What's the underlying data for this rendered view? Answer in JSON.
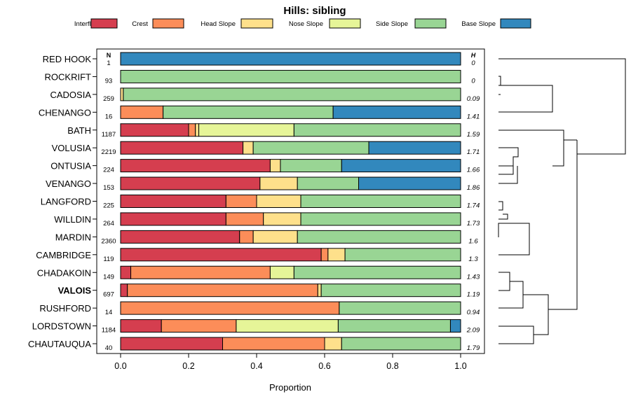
{
  "chart_data": {
    "type": "bar",
    "stacked": true,
    "orientation": "horizontal",
    "title": "Hills: sibling",
    "xlabel": "Proportion",
    "ylabel": "",
    "xlim": [
      0,
      1
    ],
    "xticks": [
      "0.0",
      "0.2",
      "0.4",
      "0.6",
      "0.8",
      "1.0"
    ],
    "n_header": "N",
    "h_header": "H",
    "legend_position": "top",
    "highlight": "VALOIS",
    "legend": [
      {
        "name": "Interfluve",
        "color": "#D53E4F"
      },
      {
        "name": "Crest",
        "color": "#FC8D59"
      },
      {
        "name": "Head Slope",
        "color": "#FEE08B"
      },
      {
        "name": "Nose Slope",
        "color": "#E6F598"
      },
      {
        "name": "Side Slope",
        "color": "#99D594"
      },
      {
        "name": "Base Slope",
        "color": "#3288BD"
      }
    ],
    "categories": [
      "RED HOOK",
      "ROCKRIFT",
      "CADOSIA",
      "CHENANGO",
      "BATH",
      "VOLUSIA",
      "ONTUSIA",
      "VENANGO",
      "LANGFORD",
      "WILLDIN",
      "MARDIN",
      "CAMBRIDGE",
      "CHADAKOIN",
      "VALOIS",
      "RUSHFORD",
      "LORDSTOWN",
      "CHAUTAUQUA"
    ],
    "n": [
      "1",
      "93",
      "259",
      "16",
      "1187",
      "2219",
      "224",
      "153",
      "225",
      "264",
      "2360",
      "119",
      "149",
      "697",
      "14",
      "1184",
      "40"
    ],
    "h": [
      "0",
      "0",
      "0.09",
      "1.41",
      "1.59",
      "1.71",
      "1.66",
      "1.86",
      "1.74",
      "1.73",
      "1.6",
      "1.3",
      "1.43",
      "1.19",
      "0.94",
      "2.09",
      "1.79"
    ],
    "series": [
      {
        "name": "Interfluve",
        "values": [
          0,
          0,
          0,
          0,
          0.2,
          0.36,
          0.44,
          0.41,
          0.31,
          0.31,
          0.35,
          0.59,
          0.03,
          0.02,
          0,
          0.12,
          0.3
        ]
      },
      {
        "name": "Crest",
        "values": [
          0,
          0,
          0,
          0.125,
          0.02,
          0,
          0,
          0,
          0.09,
          0.11,
          0.04,
          0.02,
          0.41,
          0.56,
          0.643,
          0.22,
          0.3
        ]
      },
      {
        "name": "Head Slope",
        "values": [
          0,
          0,
          0.008,
          0,
          0.01,
          0.03,
          0.03,
          0.11,
          0.13,
          0.11,
          0.13,
          0.05,
          0,
          0.01,
          0,
          0,
          0.05
        ]
      },
      {
        "name": "Nose Slope",
        "values": [
          0,
          0,
          0,
          0,
          0.28,
          0,
          0,
          0,
          0,
          0,
          0,
          0,
          0.07,
          0,
          0,
          0.3,
          0
        ]
      },
      {
        "name": "Side Slope",
        "values": [
          0,
          1,
          0.992,
          0.5,
          0.49,
          0.34,
          0.18,
          0.18,
          0.47,
          0.47,
          0.48,
          0.34,
          0.49,
          0.41,
          0.357,
          0.33,
          0.35
        ]
      },
      {
        "name": "Base Slope",
        "values": [
          1,
          0,
          0,
          0.375,
          0,
          0.27,
          0.35,
          0.3,
          0,
          0,
          0,
          0,
          0,
          0,
          0,
          0.03,
          0
        ]
      }
    ]
  }
}
